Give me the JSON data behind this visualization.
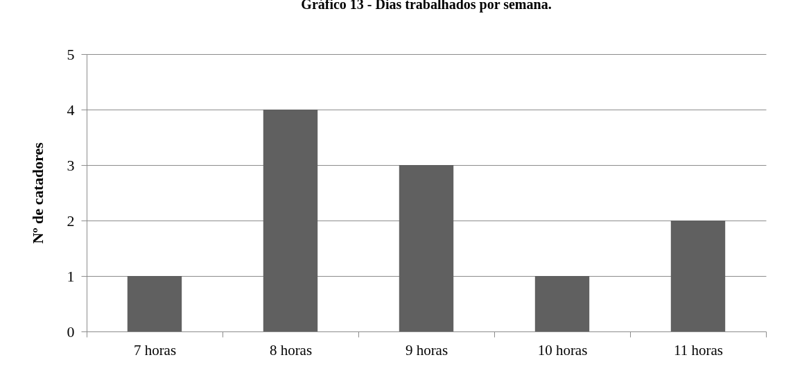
{
  "chart_data": {
    "type": "bar",
    "title": "Gráfico 13 - Dias trabalhados por semana.",
    "ylabel": "Nº de catadores",
    "categories": [
      "7 horas",
      "8 horas",
      "9 horas",
      "10 horas",
      "11 horas"
    ],
    "values": [
      1,
      4,
      3,
      1,
      2
    ],
    "color": "#606060",
    "ylim": [
      0,
      5
    ],
    "yticks": [
      0,
      1,
      2,
      3,
      4,
      5
    ],
    "grid": "y"
  }
}
